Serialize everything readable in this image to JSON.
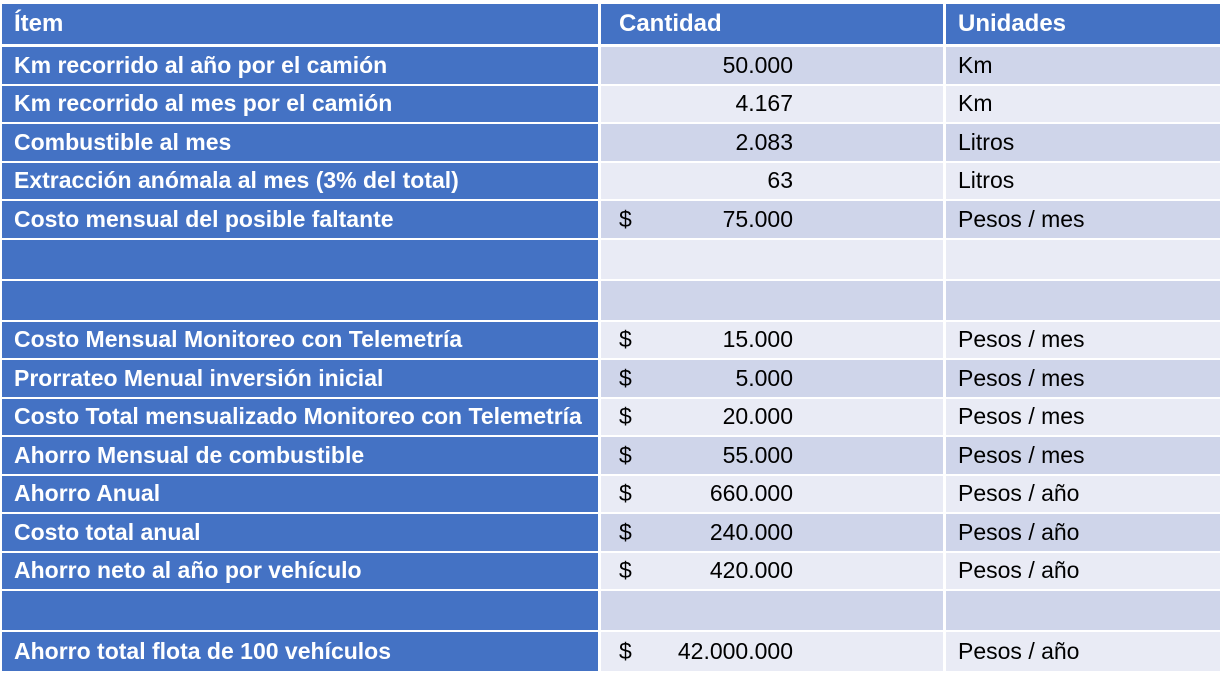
{
  "headers": {
    "item": "Ítem",
    "quantity": "Cantidad",
    "units": "Unidades"
  },
  "rows": [
    {
      "item": "Km recorrido al año por el camión",
      "currency": "",
      "amount": "50.000",
      "unit": "Km"
    },
    {
      "item": "Km recorrido al mes por el camión",
      "currency": "",
      "amount": "4.167",
      "unit": "Km"
    },
    {
      "item": "Combustible al mes",
      "currency": "",
      "amount": "2.083",
      "unit": "Litros"
    },
    {
      "item": "Extracción anómala al mes (3% del total)",
      "currency": "",
      "amount": "63",
      "unit": "Litros"
    },
    {
      "item": "Costo mensual del posible faltante",
      "currency": "$",
      "amount": "75.000",
      "unit": "Pesos / mes"
    },
    {
      "item": "",
      "currency": "",
      "amount": "",
      "unit": ""
    },
    {
      "item": "",
      "currency": "",
      "amount": "",
      "unit": ""
    },
    {
      "item": "Costo Mensual Monitoreo con Telemetría",
      "currency": "$",
      "amount": "15.000",
      "unit": "Pesos / mes"
    },
    {
      "item": "Prorrateo Menual inversión inicial",
      "currency": "$",
      "amount": "5.000",
      "unit": "Pesos / mes"
    },
    {
      "item": "Costo Total mensualizado  Monitoreo con Telemetría",
      "currency": "$",
      "amount": "20.000",
      "unit": "Pesos / mes"
    },
    {
      "item": "Ahorro Mensual de combustible",
      "currency": "$",
      "amount": "55.000",
      "unit": "Pesos / mes"
    },
    {
      "item": "Ahorro Anual",
      "currency": "$",
      "amount": "660.000",
      "unit": "Pesos / año"
    },
    {
      "item": "Costo total anual",
      "currency": "$",
      "amount": "240.000",
      "unit": "Pesos / año"
    },
    {
      "item": "Ahorro neto al año por vehículo",
      "currency": "$",
      "amount": "420.000",
      "unit": "Pesos / año"
    },
    {
      "item": "",
      "currency": "",
      "amount": "",
      "unit": ""
    },
    {
      "item": "Ahorro total flota de 100 vehículos",
      "currency": "$",
      "amount": "42.000.000",
      "unit": "Pesos / año"
    }
  ],
  "colors": {
    "header": "#4472c4",
    "row_dark": "#cfd5ea",
    "row_light": "#e9ebf5"
  }
}
